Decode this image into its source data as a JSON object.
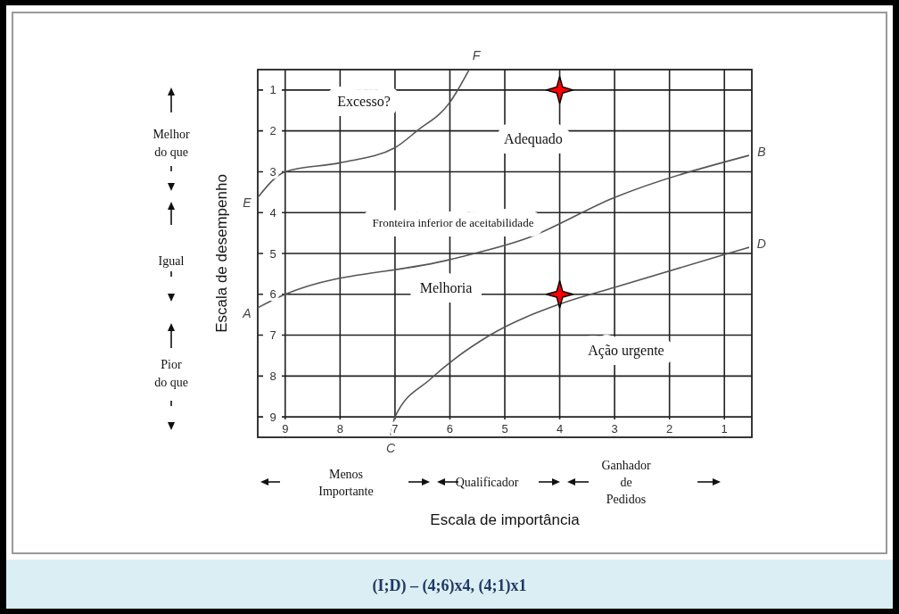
{
  "chart_data": {
    "type": "line",
    "xlabel": "Escala de importância",
    "ylabel": "Escala de desempenho",
    "xlim": [
      9.5,
      0.5
    ],
    "ylim": [
      9.5,
      0.5
    ],
    "xticks": [
      9,
      8,
      7,
      6,
      5,
      4,
      3,
      2,
      1
    ],
    "yticks": [
      1,
      2,
      3,
      4,
      5,
      6,
      7,
      8,
      9
    ],
    "grid": true,
    "series": [
      {
        "color": "#555555",
        "x": [
          9.5,
          9,
          8,
          7,
          6.6,
          6,
          5.65
        ],
        "values": [
          3.63,
          3,
          2.78,
          2.41,
          2,
          1.3,
          0.5
        ]
      },
      {
        "color": "#555555",
        "x": [
          9.5,
          9,
          6,
          4.6,
          3,
          0.55
        ],
        "values": [
          6.33,
          6,
          5.15,
          4.63,
          3.63,
          2.6
        ]
      },
      {
        "color": "#555555",
        "x": [
          7.08,
          7,
          6.35,
          5.27,
          4,
          3,
          1.03,
          0.55
        ],
        "values": [
          9.45,
          9,
          8.07,
          7,
          6.24,
          5.83,
          5.04,
          4.85
        ]
      },
      {
        "type": "scatter",
        "color": "#ff0000",
        "marker": "star",
        "x": [
          4,
          4
        ],
        "values": [
          1,
          6
        ]
      }
    ],
    "annotations": [
      {
        "text": "E",
        "x": 9.5,
        "y": 3.63
      },
      {
        "text": "F",
        "x": 5.65,
        "y": 0.5
      },
      {
        "text": "A",
        "x": 9.5,
        "y": 6.33
      },
      {
        "text": "B",
        "x": 0.55,
        "y": 2.6
      },
      {
        "text": "C",
        "x": 7.08,
        "y": 9.45
      },
      {
        "text": "D",
        "x": 0.55,
        "y": 4.85
      },
      "Excesso?",
      "Adequado",
      "Fronteira inferior de aceitabilidade",
      "Melhoria",
      "Ação urgente",
      "Melhor\ndo que",
      "Igual",
      "Pior\ndo que",
      "Menos\nImportante",
      "Qualificador",
      "Ganhador\nde\nPedidos",
      "(I;D) – (4;6)x4, (4;1)x1"
    ]
  }
}
